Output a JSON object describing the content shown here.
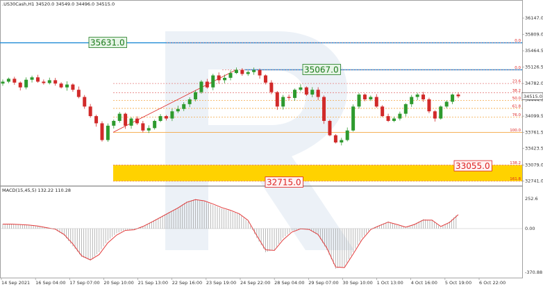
{
  "chart_data": {
    "type": "candlestick",
    "header": {
      "symbol_line": ".US30Cash,H1  34520.0 34549.0 34496.0 34515.0",
      "macd_label": "MACD(15,45,5) 132.22 110.28"
    },
    "price_axis": {
      "ticks": [
        "36147.0",
        "35809.0",
        "35464.5",
        "35126.5",
        "34782.0",
        "34444.0",
        "34099.5",
        "33761.5",
        "33423.5",
        "33079.0",
        "32741.0"
      ],
      "range": [
        32650,
        36380
      ],
      "current_price": "34515.0"
    },
    "macd_axis": {
      "ticks": [
        "252.6",
        "0.00",
        "-370.88"
      ],
      "range": [
        -370.88,
        252.6
      ]
    },
    "time_axis": [
      "14 Sep 2021",
      "16 Sep 04:00",
      "17 Sep 07:00",
      "20 Sep 10:00",
      "21 Sep 13:00",
      "22 Sep 16:00",
      "23 Sep 19:00",
      "24 Sep 22:00",
      "28 Sep 04:00",
      "29 Sep 07:00",
      "30 Sep 10:00",
      "1 Oct 13:00",
      "4 Oct 16:00",
      "5 Oct 19:00",
      "6 Oct 22:00"
    ],
    "close_path": [
      34820,
      34880,
      34800,
      34700,
      34860,
      34910,
      34820,
      34790,
      34850,
      34780,
      34700,
      34760,
      34650,
      34500,
      34300,
      34100,
      33950,
      33600,
      33900,
      34000,
      34150,
      33900,
      34050,
      33950,
      33800,
      33850,
      34000,
      34100,
      34050,
      34200,
      34250,
      34350,
      34450,
      34600,
      34820,
      34700,
      34950,
      34850,
      34900,
      35000,
      35067,
      34980,
      35020,
      35060,
      34950,
      34800,
      34600,
      34300,
      34500,
      34480,
      34650,
      34700,
      34550,
      34650,
      34500,
      34000,
      33700,
      33550,
      33600,
      33800,
      34300,
      34550,
      34450,
      34500,
      34300,
      34100,
      34000,
      34050,
      34150,
      34350,
      34500,
      34550,
      34450,
      34200,
      34050,
      34300,
      34400,
      34550,
      34515
    ],
    "macd_hist": [
      40,
      40,
      35,
      30,
      20,
      5,
      -10,
      -60,
      -150,
      -240,
      -270,
      -200,
      -100,
      -40,
      -10,
      -10,
      20,
      60,
      100,
      140,
      180,
      230,
      250,
      230,
      200,
      170,
      150,
      120,
      60,
      -80,
      -200,
      -180,
      -80,
      -20,
      0,
      -10,
      -60,
      -180,
      -340,
      -320,
      -200,
      -80,
      0,
      30,
      60,
      30,
      10,
      40,
      80,
      70,
      10,
      60,
      130
    ],
    "macd_signal": [
      38,
      38,
      34,
      30,
      22,
      8,
      -5,
      -50,
      -130,
      -230,
      -265,
      -220,
      -120,
      -55,
      -15,
      -10,
      18,
      55,
      95,
      135,
      175,
      222,
      245,
      235,
      208,
      178,
      155,
      125,
      70,
      -60,
      -180,
      -185,
      -95,
      -30,
      -2,
      -8,
      -50,
      -165,
      -325,
      -330,
      -215,
      -95,
      -8,
      25,
      55,
      35,
      12,
      35,
      72,
      72,
      18,
      52,
      118
    ],
    "levels": [
      {
        "label": "35631.0",
        "price": 35631.0,
        "color": "#1e8ad6"
      },
      {
        "label": "35067.0",
        "price": 35067.0,
        "color": "#1e8ad6"
      }
    ],
    "fib_levels": [
      {
        "label": "0.0",
        "price": 35631.0
      },
      {
        "label": "0.0",
        "price": 35067.0
      },
      {
        "label": "23.6",
        "price": 34782.0
      },
      {
        "label": "38.2",
        "price": 34590.0
      },
      {
        "label": "50.0",
        "price": 34430.0
      },
      {
        "label": "61.8",
        "price": 34262.0
      },
      {
        "label": "76.0",
        "price": 34080.0
      },
      {
        "label": "100.0",
        "price": 33761.5
      },
      {
        "label": "138.2",
        "price": 33079.0
      },
      {
        "label": "161.8",
        "price": 32741.0
      }
    ],
    "targets": [
      {
        "label": "33055.0",
        "price": 33055.0
      },
      {
        "label": "32715.0",
        "price": 32715.0
      }
    ],
    "colors": {
      "bull": "#2e9a2e",
      "bear": "#d12a2a",
      "zone": "#ffd200",
      "line": "#1e8ad6",
      "fib": "#e57a7a",
      "orange": "#f4a640",
      "signal": "#e23a3a"
    }
  }
}
